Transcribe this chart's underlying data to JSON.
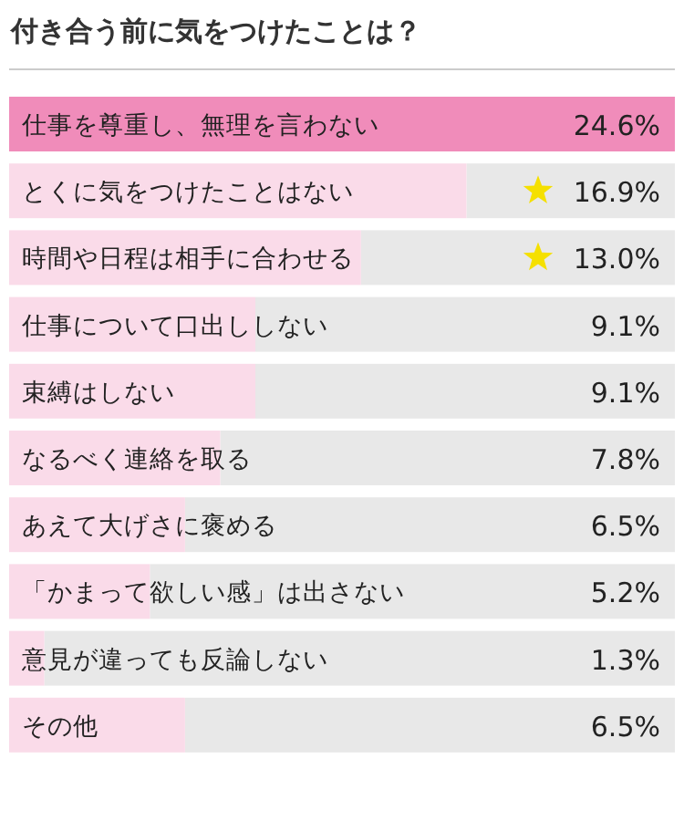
{
  "chart_data": {
    "type": "bar",
    "orientation": "horizontal",
    "title": "付き合う前に気をつけたことは？",
    "categories": [
      "仕事を尊重し、無理を言わない",
      "とくに気をつけたことはない",
      "時間や日程は相手に合わせる",
      "仕事について口出ししない",
      "束縛はしない",
      "なるべく連絡を取る",
      "あえて大げさに褒める",
      "「かまって欲しい感」は出さない",
      "意見が違っても反論しない",
      "その他"
    ],
    "values": [
      24.6,
      16.9,
      13.0,
      9.1,
      9.1,
      7.8,
      6.5,
      5.2,
      1.3,
      6.5
    ],
    "value_labels": [
      "24.6%",
      "16.9%",
      "13.0%",
      "9.1%",
      "9.1%",
      "7.8%",
      "6.5%",
      "5.2%",
      "1.3%",
      "6.5%"
    ],
    "colors": [
      "#f08cba",
      "#fadbe9",
      "#fadbe9",
      "#fadbe9",
      "#fadbe9",
      "#fadbe9",
      "#fadbe9",
      "#fadbe9",
      "#fadbe9",
      "#fadbe9"
    ],
    "xlim": [
      0,
      24.6
    ]
  }
}
